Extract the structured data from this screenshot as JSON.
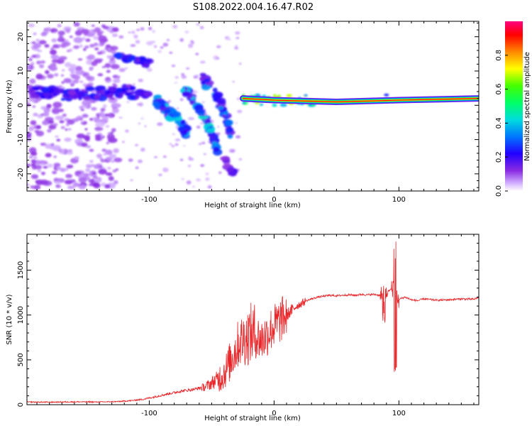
{
  "title": "S108.2022.004.16.47.R02",
  "chart_data": [
    {
      "type": "heatmap",
      "title": "",
      "xlabel": "Height of straight line (km)",
      "ylabel": "Frequency (Hz)",
      "xlim": [
        -198,
        164
      ],
      "ylim": [
        -25,
        24.5
      ],
      "xticks": [
        -100,
        0,
        100
      ],
      "yticks": [
        -20,
        -10,
        0,
        10,
        20
      ],
      "colorbar": {
        "label": "Normalized spectral amplitude",
        "range": [
          0,
          1
        ],
        "ticks": [
          0.0,
          0.2,
          0.4,
          0.6,
          0.8
        ],
        "colormap": "rainbow"
      },
      "features": [
        {
          "name": "scatter-region",
          "x": [
            -198,
            -125
          ],
          "y": [
            -24,
            24
          ]
        },
        {
          "name": "band-upper",
          "points": [
            [
              -125,
              14.5
            ],
            [
              -110,
              13.5
            ],
            [
              -100,
              12
            ]
          ]
        },
        {
          "name": "band-center-left",
          "points": [
            [
              -195,
              4
            ],
            [
              -180,
              3.5
            ],
            [
              -160,
              3
            ],
            [
              -140,
              3.5
            ],
            [
              -120,
              4
            ],
            [
              -100,
              3
            ]
          ]
        },
        {
          "name": "descending-branch-1",
          "points": [
            [
              -95,
              2
            ],
            [
              -85,
              -2
            ],
            [
              -75,
              -5
            ],
            [
              -70,
              -8
            ]
          ]
        },
        {
          "name": "descending-branch-2",
          "points": [
            [
              -72,
              5
            ],
            [
              -62,
              0
            ],
            [
              -55,
              -4
            ],
            [
              -50,
              -8
            ],
            [
              -45,
              -13
            ]
          ]
        },
        {
          "name": "descending-branch-3",
          "points": [
            [
              -58,
              8
            ],
            [
              -45,
              2
            ],
            [
              -38,
              -4
            ],
            [
              -35,
              -8
            ]
          ]
        },
        {
          "name": "tail-branch",
          "points": [
            [
              -40,
              -15
            ],
            [
              -35,
              -19
            ],
            [
              -32,
              -20
            ]
          ]
        },
        {
          "name": "stable-carrier",
          "points": [
            [
              -25,
              2
            ],
            [
              0,
              1.5
            ],
            [
              50,
              1
            ],
            [
              100,
              1.5
            ],
            [
              164,
              2
            ]
          ]
        }
      ]
    },
    {
      "type": "line",
      "title": "",
      "xlabel": "Height of straight line (km)",
      "ylabel": "SNR (10 * v/v)",
      "xlim": [
        -198,
        164
      ],
      "ylim": [
        0,
        1900
      ],
      "xticks": [
        -100,
        0,
        100
      ],
      "yticks": [
        0,
        500,
        1000,
        1500
      ],
      "color": "#e8262a",
      "x": [
        -198,
        -180,
        -160,
        -140,
        -125,
        -115,
        -105,
        -95,
        -85,
        -75,
        -65,
        -55,
        -48,
        -42,
        -38,
        -33,
        -28,
        -22,
        -18,
        -14,
        -10,
        -6,
        -2,
        2,
        6,
        10,
        14,
        18,
        22,
        26,
        30,
        35,
        40,
        45,
        50,
        55,
        60,
        65,
        70,
        75,
        80,
        85,
        90,
        95,
        97,
        99,
        101,
        105,
        110,
        115,
        120,
        130,
        140,
        150,
        160,
        164
      ],
      "values": [
        30,
        28,
        32,
        30,
        35,
        45,
        60,
        90,
        120,
        150,
        170,
        200,
        260,
        320,
        400,
        550,
        700,
        750,
        800,
        760,
        720,
        780,
        850,
        900,
        950,
        1000,
        1050,
        1100,
        1130,
        1160,
        1180,
        1200,
        1210,
        1220,
        1215,
        1220,
        1225,
        1220,
        1230,
        1225,
        1230,
        1220,
        1250,
        1300,
        1500,
        1150,
        1180,
        1200,
        1170,
        1160,
        1180,
        1165,
        1170,
        1180,
        1175,
        1200
      ],
      "spikes": [
        {
          "x": 97,
          "max": 1900,
          "min": 420
        },
        {
          "x": 88,
          "max": 1330,
          "min": 1050
        }
      ]
    }
  ]
}
